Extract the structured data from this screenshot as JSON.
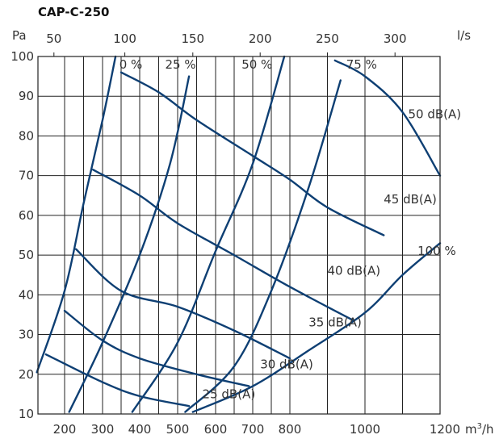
{
  "chart_data": {
    "type": "line",
    "title": "CAP-C-250",
    "ylabel": "Pa",
    "xlabel": "m³/h",
    "x2label": "l/s",
    "xlim": [
      150,
      1200
    ],
    "ylim": [
      10,
      100
    ],
    "x_ticks": [
      "200",
      "300",
      "400",
      "500",
      "600",
      "700",
      "800",
      "1000",
      "1200"
    ],
    "x_tick_values": [
      200,
      300,
      400,
      500,
      600,
      700,
      800,
      1000,
      1200
    ],
    "x2_ticks": [
      "50",
      "100",
      "150",
      "200",
      "250",
      "300"
    ],
    "x2_tick_values": [
      50,
      100,
      150,
      200,
      250,
      300
    ],
    "y_ticks": [
      "10",
      "20",
      "30",
      "40",
      "50",
      "60",
      "70",
      "80",
      "90",
      "100"
    ],
    "y_tick_values": [
      10,
      20,
      30,
      40,
      50,
      60,
      70,
      80,
      90,
      100
    ],
    "grid": true,
    "color": "#0e3f73",
    "series": [
      {
        "name": "0 %",
        "label": "0 %",
        "label_at": [
          345,
          97
        ],
        "x": [
          148,
          200,
          250,
          300,
          335
        ],
        "y": [
          20.5,
          41,
          63,
          84,
          100
        ]
      },
      {
        "name": "25 %",
        "label": "25 %",
        "label_at": [
          467,
          97
        ],
        "x": [
          212,
          300,
          400,
          480,
          530
        ],
        "y": [
          10.5,
          28,
          50,
          73,
          95
        ]
      },
      {
        "name": "50 %",
        "label": "50 %",
        "label_at": [
          670,
          97
        ],
        "x": [
          380,
          500,
          600,
          700,
          785
        ],
        "y": [
          10.5,
          28,
          51,
          73,
          100
        ]
      },
      {
        "name": "75 %",
        "label": "75 %",
        "label_at": [
          950,
          97
        ],
        "x": [
          520,
          650,
          750,
          850,
          935
        ],
        "y": [
          10.5,
          22,
          41,
          67,
          94
        ]
      },
      {
        "name": "100 %",
        "label": "100 %",
        "label_at": [
          1140,
          50
        ],
        "x": [
          540,
          700,
          850,
          1000,
          1100,
          1200
        ],
        "y": [
          10.5,
          17,
          26,
          35.5,
          45,
          53
        ]
      },
      {
        "name": "25 dB(A)",
        "label": "25 dB(A)",
        "label_at": [
          565,
          14
        ],
        "x": [
          165,
          300,
          400,
          530
        ],
        "y": [
          25,
          18,
          14.5,
          12
        ]
      },
      {
        "name": "30 dB(A)",
        "label": "30 dB(A)",
        "label_at": [
          720,
          21.5
        ],
        "x": [
          200,
          300,
          400,
          550,
          690
        ],
        "y": [
          36,
          28.5,
          24,
          20,
          17
        ]
      },
      {
        "name": "35 dB(A)",
        "label": "35 dB(A)",
        "label_at": [
          850,
          32
        ],
        "x": [
          230,
          350,
          500,
          650,
          800
        ],
        "y": [
          51.5,
          41,
          37,
          31,
          24
        ]
      },
      {
        "name": "40 dB(A)",
        "label": "40 dB(A)",
        "label_at": [
          900,
          45
        ],
        "x": [
          275,
          400,
          500,
          650,
          800,
          970
        ],
        "y": [
          71.5,
          65,
          58,
          50,
          42,
          33.5
        ]
      },
      {
        "name": "45 dB(A)",
        "label": "45 dB(A)",
        "label_at": [
          1050,
          63
        ],
        "x": [
          350,
          450,
          550,
          700,
          800,
          900,
          1050
        ],
        "y": [
          96,
          91,
          84,
          75,
          69,
          62,
          55
        ]
      },
      {
        "name": "50 dB(A)",
        "label": "50 dB(A)",
        "label_at": [
          1115,
          84.5
        ],
        "x": [
          920,
          1000,
          1100,
          1200
        ],
        "y": [
          99,
          95,
          86,
          70
        ]
      }
    ]
  }
}
